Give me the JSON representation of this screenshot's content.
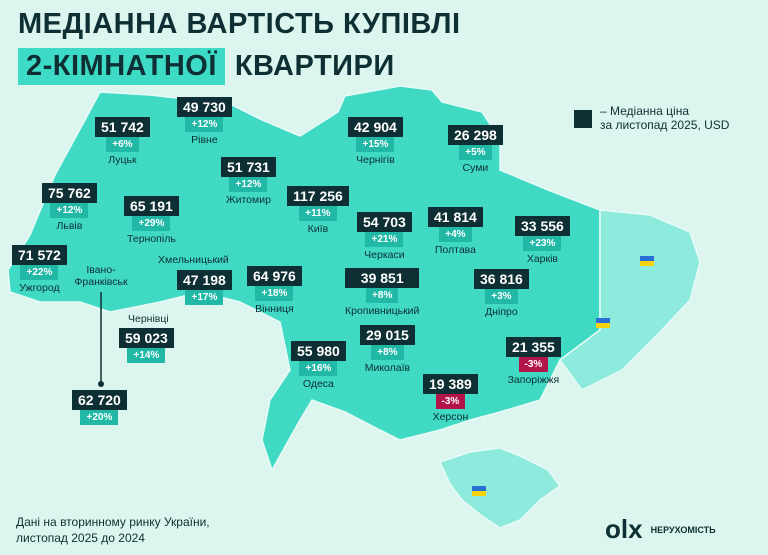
{
  "header": {
    "title_line1": "МЕДІАННА ВАРТІСТЬ КУПІВЛІ",
    "title_highlight": "2-КІМНАТНОЇ",
    "title_line2": "КВАРТИРИ"
  },
  "legend": {
    "line1": "Медіанна ціна",
    "line2": "за листопад 2025, USD"
  },
  "regions": [
    {
      "name": "Луцьк",
      "price": "51 742",
      "change": "+6%"
    },
    {
      "name": "Рівне",
      "price": "49 730",
      "change": "+12%"
    },
    {
      "name": "Львів",
      "price": "75 762",
      "change": "+12%"
    },
    {
      "name": "Тернопіль",
      "price": "65 191",
      "change": "+29%"
    },
    {
      "name": "Житомир",
      "price": "51 731",
      "change": "+12%"
    },
    {
      "name": "Київ",
      "price": "117 256",
      "change": "+11%"
    },
    {
      "name": "Чернігів",
      "price": "42 904",
      "change": "+15%"
    },
    {
      "name": "Суми",
      "price": "26 298",
      "change": "+5%"
    },
    {
      "name": "Полтава",
      "price": "41 814",
      "change": "+4%"
    },
    {
      "name": "Харків",
      "price": "33 556",
      "change": "+23%"
    },
    {
      "name": "Черкаси",
      "price": "54 703",
      "change": "+21%"
    },
    {
      "name": "Ужгород",
      "price": "71 572",
      "change": "+22%"
    },
    {
      "name": "Івано-Франківськ",
      "price": "62 720",
      "change": "+20%"
    },
    {
      "name": "Хмельницький",
      "price": "47 198",
      "change": "+17%"
    },
    {
      "name": "Вінниця",
      "price": "64 976",
      "change": "+18%"
    },
    {
      "name": "Кропивницький",
      "price": "39 851",
      "change": "+8%"
    },
    {
      "name": "Дніпро",
      "price": "36 816",
      "change": "+3%"
    },
    {
      "name": "Чернівці",
      "price": "59 023",
      "change": "+14%"
    },
    {
      "name": "Одеса",
      "price": "55 980",
      "change": "+16%"
    },
    {
      "name": "Миколаїв",
      "price": "29 015",
      "change": "+8%"
    },
    {
      "name": "Запоріжжя",
      "price": "21 355",
      "change": "-3%"
    },
    {
      "name": "Херсон",
      "price": "19 389",
      "change": "-3%"
    }
  ],
  "footer": {
    "note_line1": "Дані на вторинному ринку України,",
    "note_line2": "листопад 2025 до 2024",
    "logo": "olx",
    "logo_sub": "НЕРУХОМІСТЬ"
  }
}
